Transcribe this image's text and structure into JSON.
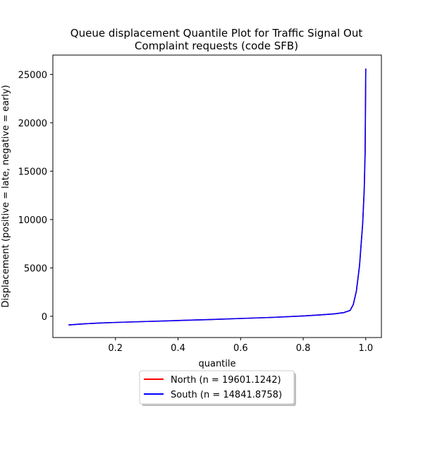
{
  "chart_data": {
    "type": "line",
    "title_line1": "Queue displacement Quantile Plot for Traffic Signal Out",
    "title_line2": "Complaint  requests (code SFB)",
    "xlabel": "quantile",
    "ylabel": "Displacement (positive = late, negative = early)",
    "xlim": [
      0.0,
      1.05
    ],
    "ylim": [
      -2200,
      27000
    ],
    "xticks": [
      0.2,
      0.4,
      0.6,
      0.8,
      1.0
    ],
    "xtick_labels": [
      "0.2",
      "0.4",
      "0.6",
      "0.8",
      "1.0"
    ],
    "yticks": [
      0,
      5000,
      10000,
      15000,
      20000,
      25000
    ],
    "ytick_labels": [
      "0",
      "5000",
      "10000",
      "15000",
      "20000",
      "25000"
    ],
    "grid": false,
    "legend_position": "below",
    "series": [
      {
        "name": "North (n = 19601.1242)",
        "color": "#ff0000",
        "x": [
          0.05,
          0.1,
          0.15,
          0.2,
          0.3,
          0.4,
          0.5,
          0.6,
          0.7,
          0.8,
          0.85,
          0.9,
          0.93,
          0.95,
          0.96,
          0.97,
          0.98,
          0.99,
          0.995,
          0.998,
          1.0
        ],
        "y": [
          -900,
          -780,
          -700,
          -640,
          -540,
          -440,
          -340,
          -230,
          -120,
          30,
          130,
          250,
          380,
          600,
          1200,
          2600,
          5200,
          9500,
          13000,
          17000,
          25600
        ]
      },
      {
        "name": "South (n = 14841.8758)",
        "color": "#0000ff",
        "x": [
          0.05,
          0.1,
          0.15,
          0.2,
          0.3,
          0.4,
          0.5,
          0.6,
          0.7,
          0.8,
          0.85,
          0.9,
          0.93,
          0.95,
          0.96,
          0.97,
          0.98,
          0.99,
          0.995,
          0.998,
          1.0
        ],
        "y": [
          -900,
          -780,
          -700,
          -640,
          -540,
          -440,
          -340,
          -230,
          -120,
          30,
          130,
          250,
          380,
          600,
          1200,
          2600,
          5200,
          9500,
          13000,
          17000,
          25600
        ]
      }
    ]
  }
}
